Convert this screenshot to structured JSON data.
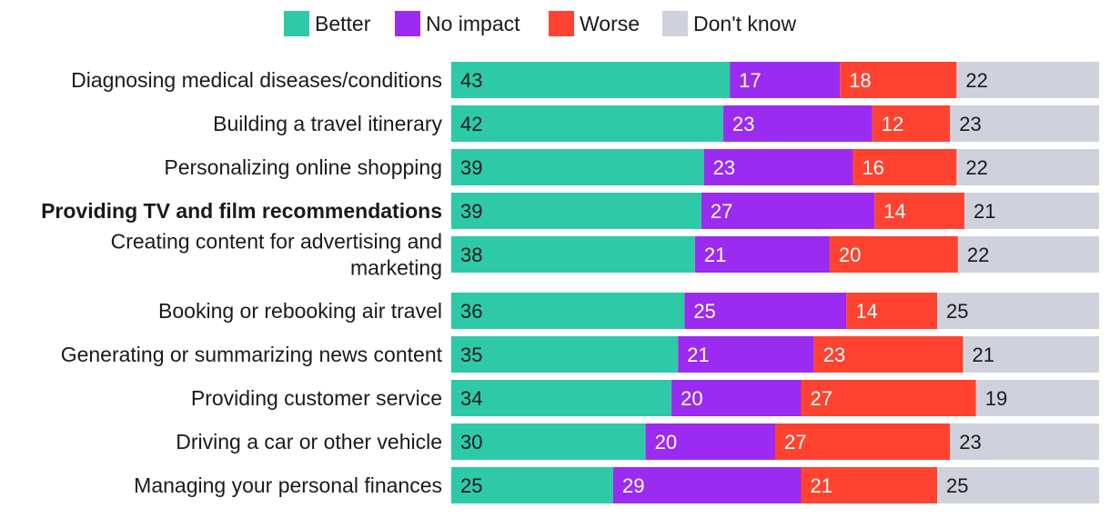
{
  "chart_data": {
    "type": "bar",
    "orientation": "horizontal",
    "stacked": true,
    "legend": {
      "position": "top"
    },
    "categories": [
      [
        "Diagnosing medical diseases/conditions"
      ],
      [
        "Building a travel itinerary"
      ],
      [
        "Personalizing online shopping"
      ],
      [
        "Providing TV and film recommendations"
      ],
      [
        "Creating content for advertising and",
        "marketing"
      ],
      [
        "Booking or rebooking air travel"
      ],
      [
        "Generating or summarizing news content"
      ],
      [
        "Providing customer service"
      ],
      [
        "Driving a car or other vehicle"
      ],
      [
        "Managing your personal finances"
      ]
    ],
    "highlighted_category": "Providing TV and film recommendations",
    "xlim": [
      0,
      100
    ],
    "series": [
      {
        "name": "Better",
        "color": "#2ecaa8",
        "label_color": "#1a1a1a",
        "values": [
          43,
          42,
          39,
          39,
          38,
          36,
          35,
          34,
          30,
          25
        ]
      },
      {
        "name": "No impact",
        "color": "#9b2bf0",
        "label_color": "#ffffff",
        "values": [
          17,
          23,
          23,
          27,
          21,
          25,
          21,
          20,
          20,
          29
        ]
      },
      {
        "name": "Worse",
        "color": "#ff4330",
        "label_color": "#ffffff",
        "values": [
          18,
          12,
          16,
          14,
          20,
          14,
          23,
          27,
          27,
          21
        ]
      },
      {
        "name": "Don't know",
        "color": "#cfd2dc",
        "label_color": "#1a1a1a",
        "values": [
          22,
          23,
          22,
          21,
          22,
          25,
          21,
          19,
          23,
          25
        ]
      }
    ]
  }
}
